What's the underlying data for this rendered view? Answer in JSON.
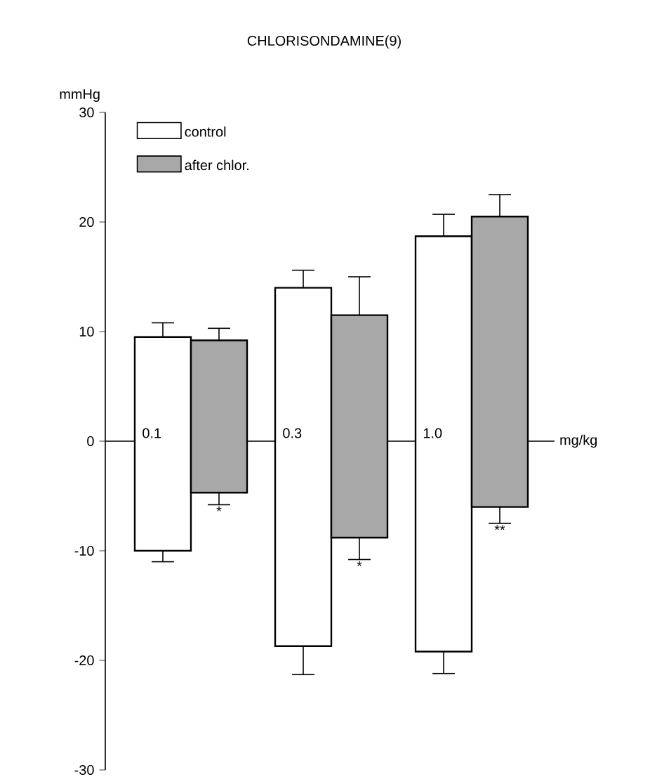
{
  "chart_data": {
    "type": "bar",
    "title": "CHLORISONDAMINE(9)",
    "xlabel": "mg/kg",
    "ylabel": "mmHg",
    "categories": [
      "0.1",
      "0.3",
      "1.0"
    ],
    "series": [
      {
        "name": "control",
        "color": "#ffffff",
        "base": [
          -10,
          -18.7,
          -19.2
        ],
        "values": [
          19.5,
          32.7,
          37.9
        ],
        "errors": [
          [
            -11,
            10.8
          ],
          [
            -21.3,
            15.6
          ],
          [
            -21.2,
            20.7
          ]
        ]
      },
      {
        "name": "after chlor.",
        "color": "#a8a8a8",
        "base": [
          -4.7,
          -8.8,
          -6
        ],
        "values": [
          13.9,
          20.3,
          26.5
        ],
        "errors": [
          [
            -5.8,
            10.3
          ],
          [
            -10.8,
            15
          ],
          [
            -7.5,
            22.5
          ]
        ]
      }
    ],
    "ylim": [
      -30,
      30
    ],
    "yticks": [
      -30,
      -20,
      -10,
      0,
      10,
      20,
      30
    ],
    "legend": "top left",
    "annotations": [
      "*",
      "*",
      "**"
    ]
  }
}
